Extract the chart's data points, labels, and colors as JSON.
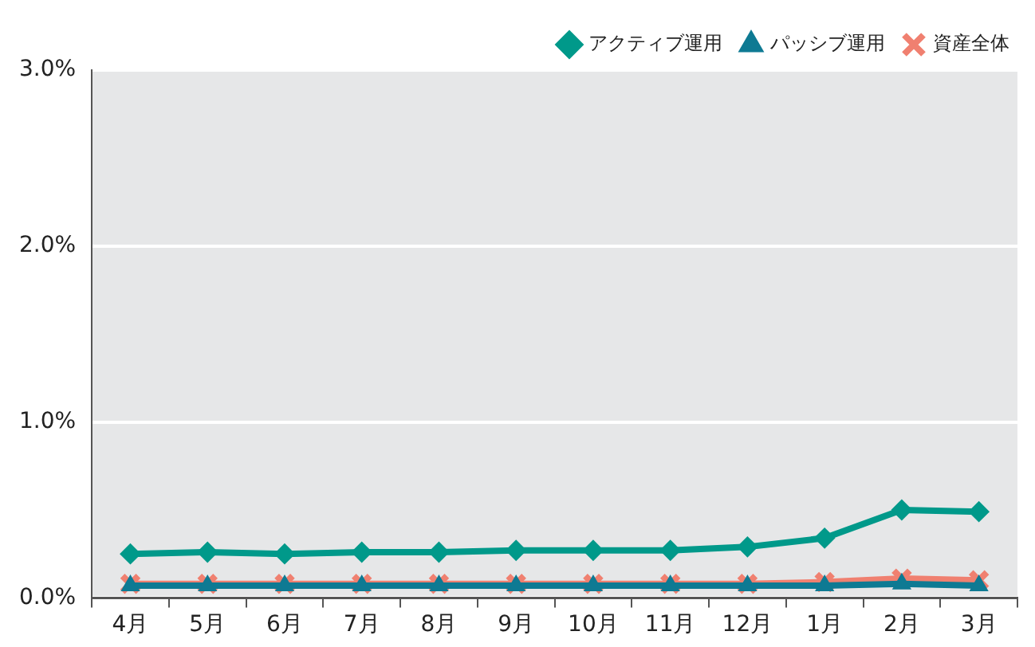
{
  "chart_data": {
    "type": "line",
    "categories": [
      "4月",
      "5月",
      "6月",
      "7月",
      "8月",
      "9月",
      "10月",
      "11月",
      "12月",
      "1月",
      "2月",
      "3月"
    ],
    "ylim": [
      0,
      3
    ],
    "yticks": [
      {
        "value": 0,
        "label": "0.0%"
      },
      {
        "value": 1,
        "label": "1.0%"
      },
      {
        "value": 2,
        "label": "2.0%"
      },
      {
        "value": 3,
        "label": "3.0%"
      }
    ],
    "grid": "y",
    "legend": "top right",
    "series": [
      {
        "name": "アクティブ運用",
        "color": "#00998a",
        "marker": "diamond",
        "values": [
          0.25,
          0.26,
          0.25,
          0.26,
          0.26,
          0.27,
          0.27,
          0.27,
          0.29,
          0.34,
          0.5,
          0.49
        ]
      },
      {
        "name": "パッシブ運用",
        "color": "#0e7a93",
        "marker": "triangle",
        "values": [
          0.07,
          0.07,
          0.07,
          0.07,
          0.07,
          0.07,
          0.07,
          0.07,
          0.07,
          0.07,
          0.08,
          0.07
        ]
      },
      {
        "name": "資産全体",
        "color": "#f08070",
        "marker": "cross",
        "values": [
          0.08,
          0.08,
          0.08,
          0.08,
          0.08,
          0.08,
          0.08,
          0.08,
          0.08,
          0.09,
          0.11,
          0.1
        ]
      }
    ]
  }
}
